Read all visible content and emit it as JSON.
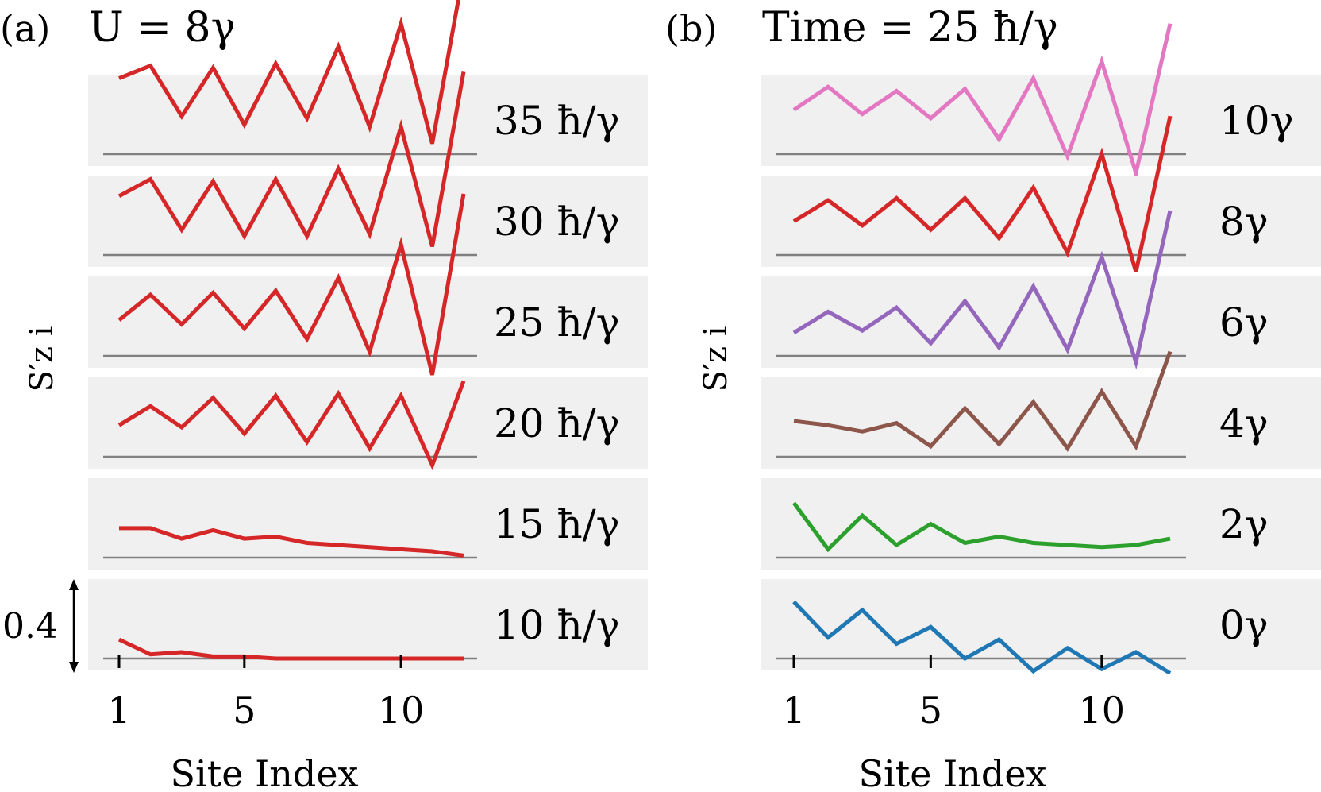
{
  "chart_data": [
    {
      "type": "line",
      "panel_label": "(a)",
      "title": "U = 8γ",
      "xlabel": "Site Index",
      "ylabel": "S′z i",
      "x": [
        1,
        2,
        3,
        4,
        5,
        6,
        7,
        8,
        9,
        10,
        11,
        12
      ],
      "xticks": [
        1,
        5,
        10
      ],
      "scale_bar": {
        "label": "0.4",
        "value": 0.4
      },
      "grid": false,
      "series": [
        {
          "name": "35 ħ/γ",
          "color": "#d62728",
          "values": [
            0.36,
            0.42,
            0.18,
            0.41,
            0.14,
            0.43,
            0.17,
            0.51,
            0.13,
            0.62,
            0.05,
            0.87
          ]
        },
        {
          "name": "30 ħ/γ",
          "color": "#d62728",
          "values": [
            0.28,
            0.36,
            0.12,
            0.35,
            0.09,
            0.36,
            0.09,
            0.41,
            0.1,
            0.61,
            0.04,
            0.87
          ]
        },
        {
          "name": "25 ħ/γ",
          "color": "#d62728",
          "values": [
            0.17,
            0.29,
            0.15,
            0.3,
            0.13,
            0.31,
            0.08,
            0.37,
            0.02,
            0.53,
            -0.09,
            0.77
          ]
        },
        {
          "name": "20 ħ/γ",
          "color": "#d62728",
          "values": [
            0.15,
            0.24,
            0.14,
            0.28,
            0.11,
            0.29,
            0.07,
            0.3,
            0.04,
            0.29,
            -0.04,
            0.36
          ]
        },
        {
          "name": "15 ħ/γ",
          "color": "#d62728",
          "values": [
            0.14,
            0.14,
            0.09,
            0.13,
            0.09,
            0.1,
            0.07,
            0.06,
            0.05,
            0.04,
            0.03,
            0.01
          ]
        },
        {
          "name": "10 ħ/γ",
          "color": "#d62728",
          "values": [
            0.09,
            0.02,
            0.03,
            0.01,
            0.01,
            0.0,
            0.0,
            0.0,
            0.0,
            0.0,
            0.0,
            0.0
          ]
        }
      ]
    },
    {
      "type": "line",
      "panel_label": "(b)",
      "title": "Time = 25 ħ/γ",
      "xlabel": "Site Index",
      "ylabel": "S′z i",
      "x": [
        1,
        2,
        3,
        4,
        5,
        6,
        7,
        8,
        9,
        10,
        11,
        12
      ],
      "xticks": [
        1,
        5,
        10
      ],
      "grid": false,
      "series": [
        {
          "name": "10γ",
          "color": "#e377c2",
          "values": [
            0.21,
            0.32,
            0.19,
            0.3,
            0.17,
            0.31,
            0.07,
            0.36,
            -0.01,
            0.44,
            -0.09,
            0.62
          ]
        },
        {
          "name": "8γ",
          "color": "#d62728",
          "values": [
            0.16,
            0.26,
            0.14,
            0.27,
            0.12,
            0.27,
            0.08,
            0.32,
            0.01,
            0.48,
            -0.08,
            0.66
          ]
        },
        {
          "name": "6γ",
          "color": "#9467bd",
          "values": [
            0.11,
            0.21,
            0.12,
            0.23,
            0.06,
            0.26,
            0.04,
            0.33,
            0.03,
            0.47,
            -0.03,
            0.69
          ]
        },
        {
          "name": "4γ",
          "color": "#8c564b",
          "values": [
            0.17,
            0.15,
            0.12,
            0.16,
            0.05,
            0.23,
            0.06,
            0.26,
            0.04,
            0.31,
            0.05,
            0.5
          ]
        },
        {
          "name": "2γ",
          "color": "#2ca02c",
          "values": [
            0.26,
            0.04,
            0.2,
            0.06,
            0.16,
            0.07,
            0.1,
            0.07,
            0.06,
            0.05,
            0.06,
            0.09
          ]
        },
        {
          "name": "0γ",
          "color": "#1f77b4",
          "values": [
            0.27,
            0.1,
            0.23,
            0.07,
            0.15,
            0.0,
            0.09,
            -0.06,
            0.05,
            -0.05,
            0.03,
            -0.07
          ]
        }
      ]
    }
  ]
}
